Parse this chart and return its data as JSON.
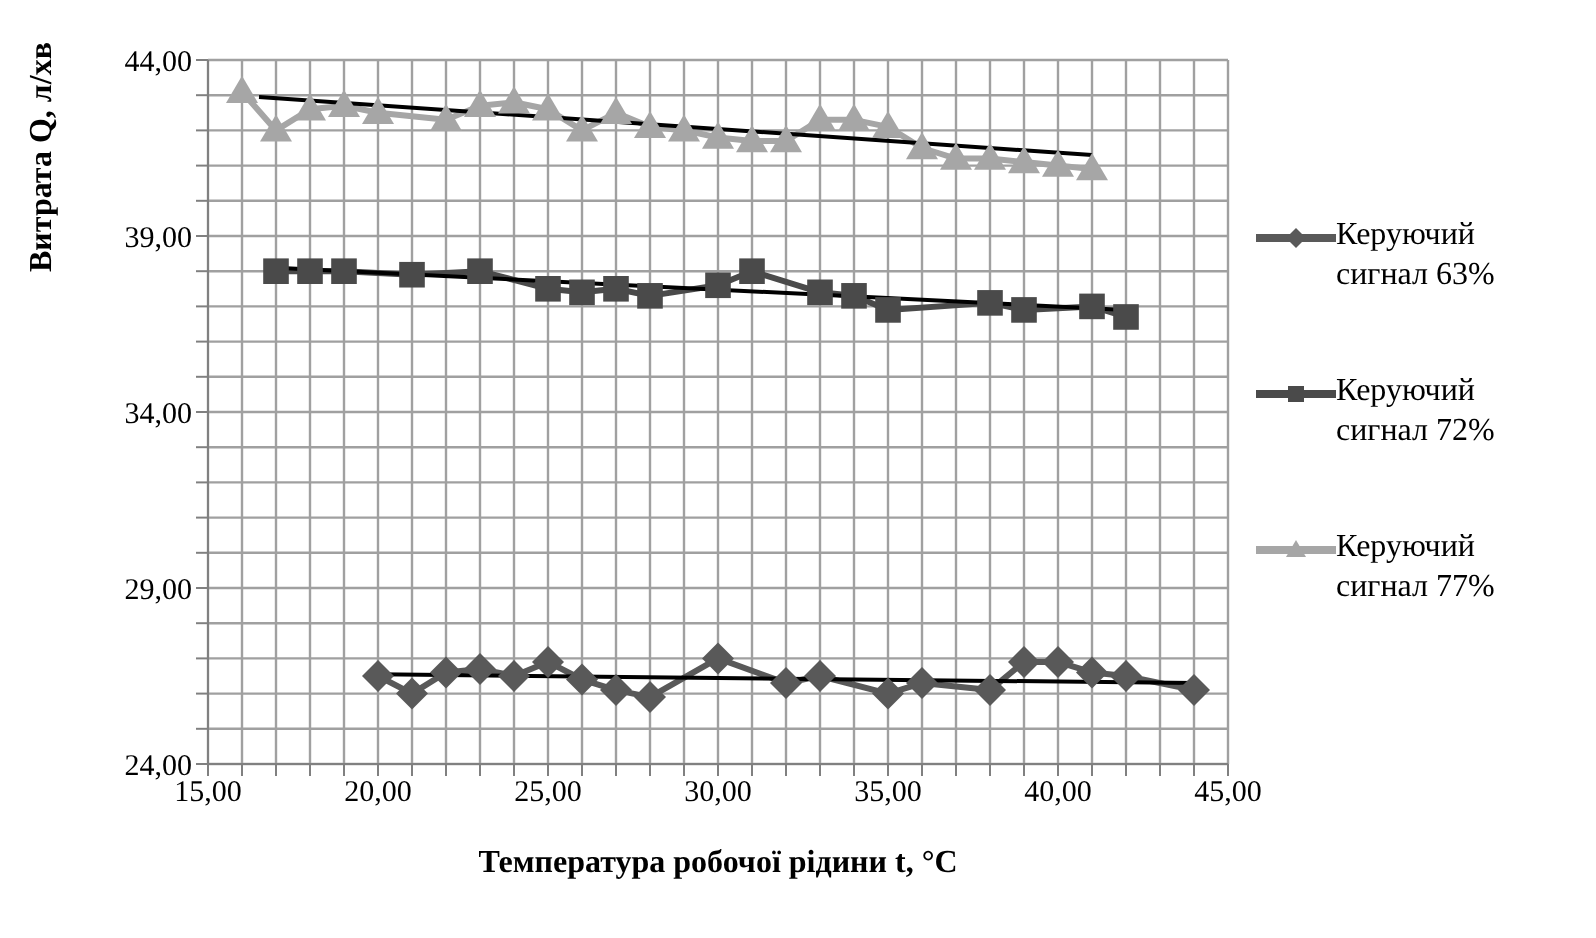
{
  "chart_data": {
    "type": "line",
    "xlabel": "Температура робочої рідини t, °C",
    "ylabel": "Витрата Q, л/хв",
    "xlim": [
      15,
      45
    ],
    "ylim": [
      24,
      44
    ],
    "xticks": [
      {
        "value": 15,
        "label": "15,00"
      },
      {
        "value": 16,
        "label": null
      },
      {
        "value": 17,
        "label": null
      },
      {
        "value": 18,
        "label": null
      },
      {
        "value": 19,
        "label": null
      },
      {
        "value": 20,
        "label": "20,00"
      },
      {
        "value": 21,
        "label": null
      },
      {
        "value": 22,
        "label": null
      },
      {
        "value": 23,
        "label": null
      },
      {
        "value": 24,
        "label": null
      },
      {
        "value": 25,
        "label": "25,00"
      },
      {
        "value": 26,
        "label": null
      },
      {
        "value": 27,
        "label": null
      },
      {
        "value": 28,
        "label": null
      },
      {
        "value": 29,
        "label": null
      },
      {
        "value": 30,
        "label": "30,00"
      },
      {
        "value": 31,
        "label": null
      },
      {
        "value": 32,
        "label": null
      },
      {
        "value": 33,
        "label": null
      },
      {
        "value": 34,
        "label": null
      },
      {
        "value": 35,
        "label": "35,00"
      },
      {
        "value": 36,
        "label": null
      },
      {
        "value": 37,
        "label": null
      },
      {
        "value": 38,
        "label": null
      },
      {
        "value": 39,
        "label": null
      },
      {
        "value": 40,
        "label": "40,00"
      },
      {
        "value": 41,
        "label": null
      },
      {
        "value": 42,
        "label": null
      },
      {
        "value": 43,
        "label": null
      },
      {
        "value": 44,
        "label": null
      },
      {
        "value": 45,
        "label": "45,00"
      }
    ],
    "yticks": [
      {
        "value": 24,
        "label": "24,00"
      },
      {
        "value": 25,
        "label": null
      },
      {
        "value": 26,
        "label": null
      },
      {
        "value": 27,
        "label": null
      },
      {
        "value": 28,
        "label": null
      },
      {
        "value": 29,
        "label": "29,00"
      },
      {
        "value": 30,
        "label": null
      },
      {
        "value": 31,
        "label": null
      },
      {
        "value": 32,
        "label": null
      },
      {
        "value": 33,
        "label": null
      },
      {
        "value": 34,
        "label": "34,00"
      },
      {
        "value": 35,
        "label": null
      },
      {
        "value": 36,
        "label": null
      },
      {
        "value": 37,
        "label": null
      },
      {
        "value": 38,
        "label": null
      },
      {
        "value": 39,
        "label": "39,00"
      },
      {
        "value": 40,
        "label": null
      },
      {
        "value": 41,
        "label": null
      },
      {
        "value": 42,
        "label": null
      },
      {
        "value": 43,
        "label": null
      },
      {
        "value": 44,
        "label": "44,00"
      }
    ],
    "grid": true,
    "legend": "right",
    "series": [
      {
        "name": "Керуючий сигнал 63%",
        "color": "#595959",
        "marker": "diamond",
        "x": [
          20,
          21,
          22,
          23,
          24,
          25,
          26,
          27,
          28,
          30,
          32,
          33,
          35,
          36,
          38,
          39,
          40,
          41,
          42,
          44
        ],
        "values": [
          26.5,
          26.0,
          26.6,
          26.7,
          26.5,
          26.9,
          26.4,
          26.1,
          25.9,
          27.0,
          26.3,
          26.5,
          26.0,
          26.3,
          26.1,
          26.9,
          26.9,
          26.6,
          26.5,
          26.1
        ]
      },
      {
        "name": "Керуючий сигнал 72%",
        "color": "#4a4a4a",
        "marker": "square",
        "x": [
          17,
          18,
          19,
          21,
          23,
          25,
          26,
          27,
          28,
          30,
          31,
          33,
          34,
          35,
          38,
          39,
          41,
          42
        ],
        "values": [
          38.0,
          38.0,
          38.0,
          37.9,
          38.0,
          37.5,
          37.4,
          37.5,
          37.3,
          37.6,
          38.0,
          37.4,
          37.3,
          36.9,
          37.1,
          36.9,
          37.0,
          36.7
        ]
      },
      {
        "name": "Керуючий сигнал 77%",
        "color": "#a6a6a6",
        "marker": "triangle",
        "x": [
          16,
          17,
          18,
          19,
          20,
          22,
          23,
          24,
          25,
          26,
          27,
          28,
          29,
          30,
          31,
          32,
          33,
          34,
          35,
          36,
          37,
          38,
          39,
          40,
          41
        ],
        "values": [
          43.1,
          42.0,
          42.6,
          42.7,
          42.5,
          42.3,
          42.7,
          42.8,
          42.6,
          42.0,
          42.5,
          42.1,
          42.0,
          41.8,
          41.7,
          41.7,
          42.3,
          42.3,
          42.1,
          41.5,
          41.2,
          41.2,
          41.1,
          41.0,
          40.9
        ]
      },
      {
        "type": "line",
        "color": "#000000",
        "marker": "none",
        "x": [
          20,
          44
        ],
        "values": [
          26.55,
          26.3
        ]
      },
      {
        "type": "line",
        "color": "#000000",
        "marker": "none",
        "x": [
          17,
          42
        ],
        "values": [
          38.1,
          36.9
        ]
      },
      {
        "type": "line",
        "color": "#000000",
        "marker": "none",
        "x": [
          16.5,
          41
        ],
        "values": [
          42.95,
          41.3
        ]
      }
    ]
  }
}
